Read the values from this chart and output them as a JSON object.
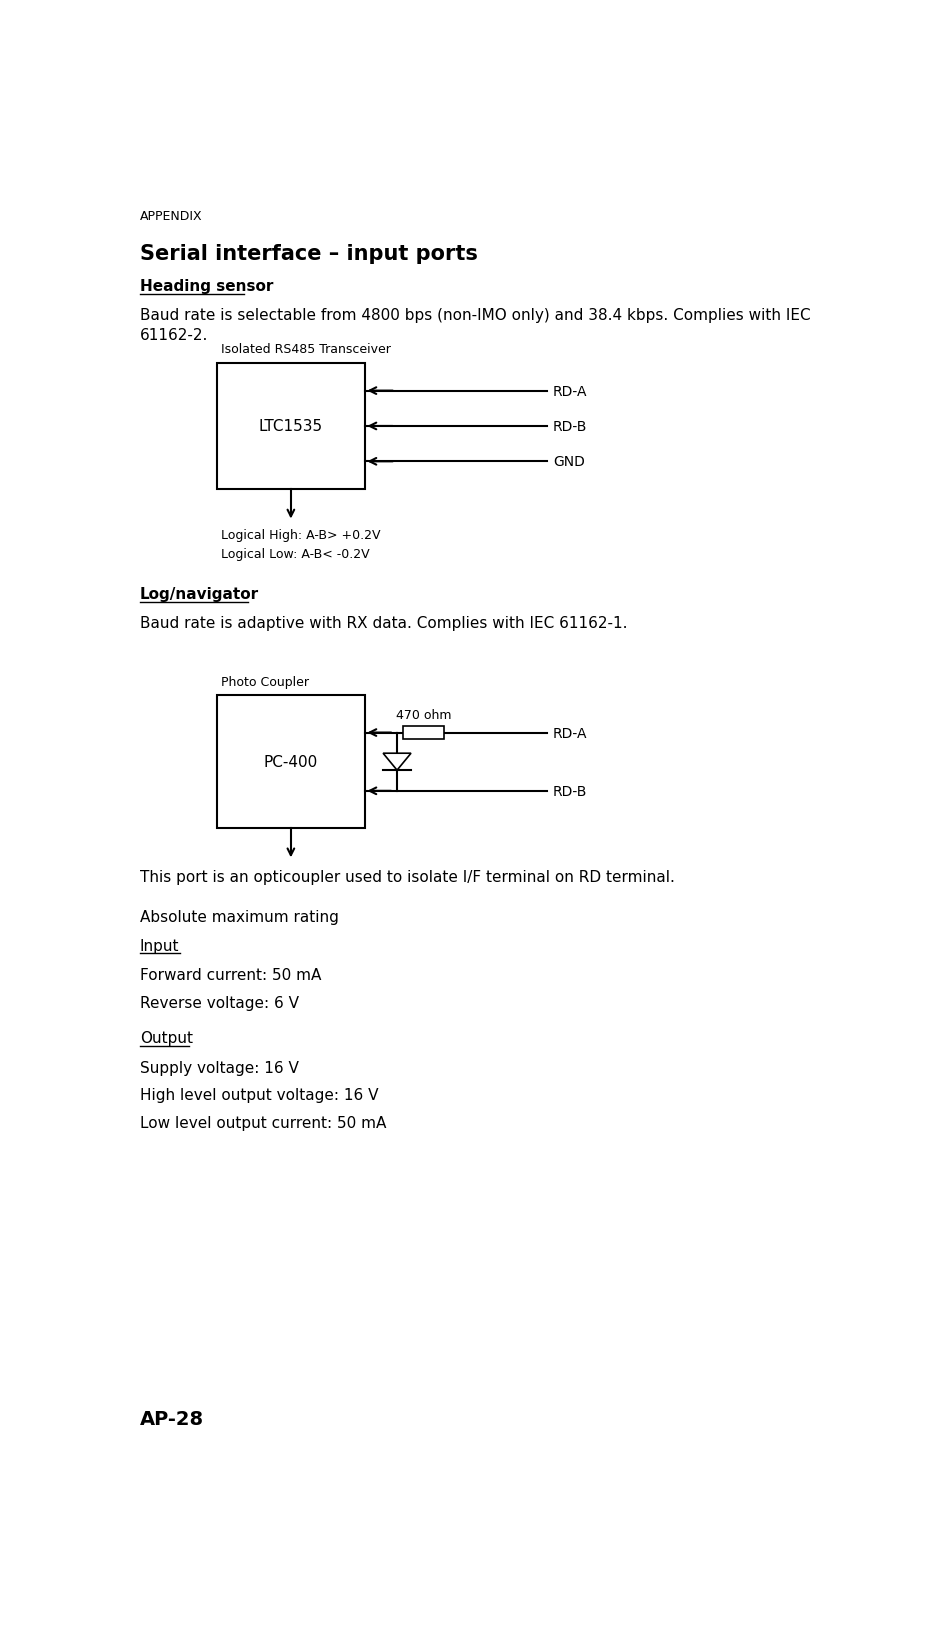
{
  "bg_color": "#ffffff",
  "page_width": 9.32,
  "page_height": 16.33,
  "appendix_text": "APPENDIX",
  "title": "Serial interface – input ports",
  "section1_heading": "Heading sensor",
  "section1_body": "Baud rate is selectable from 4800 bps (non-IMO only) and 38.4 kbps. Complies with IEC\n61162-2.",
  "diag1_label": "Isolated RS485 Transceiver",
  "diag1_chip": "LTC1535",
  "diag1_signals": [
    "RD-A",
    "RD-B",
    "GND"
  ],
  "diag1_bottom_label1": "Logical High: A-B> +0.2V",
  "diag1_bottom_label2": "Logical Low: A-B< -0.2V",
  "section2_heading": "Log/navigator",
  "section2_body": "Baud rate is adaptive with RX data. Complies with IEC 61162-1.",
  "diag2_label": "Photo Coupler",
  "diag2_chip": "PC-400",
  "diag2_resistor": "470 ohm",
  "diag2_signals": [
    "RD-A",
    "RD-B"
  ],
  "para1": "This port is an opticoupler used to isolate I/F terminal on RD terminal.",
  "para2": "Absolute maximum rating",
  "underline1": "Input",
  "input_lines": [
    "Forward current: 50 mA",
    "Reverse voltage: 6 V"
  ],
  "underline2": "Output",
  "output_lines": [
    "Supply voltage: 16 V",
    "High level output voltage: 16 V",
    "Low level output current: 50 mA"
  ],
  "footer": "AP-28"
}
